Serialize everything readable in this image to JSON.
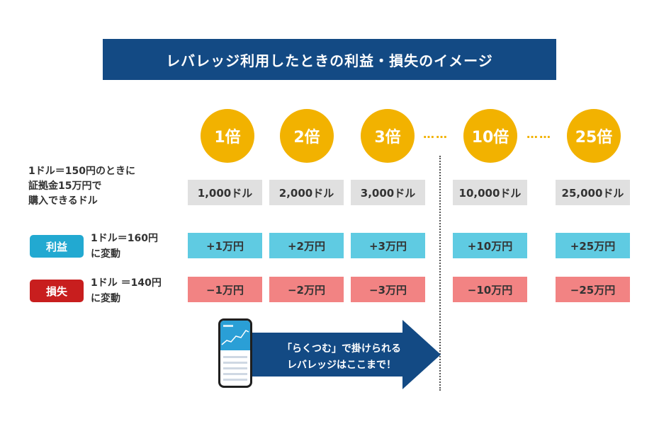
{
  "title": "レバレッジ利用したときの利益・損失のイメージ",
  "leverages": [
    "1倍",
    "2倍",
    "3倍",
    "10倍",
    "25倍"
  ],
  "dots": "……",
  "base_label": [
    "1ドル＝150円のときに",
    "証拠金15万円で",
    "購入できるドル"
  ],
  "base_values": [
    "1,000ドル",
    "2,000ドル",
    "3,000ドル",
    "10,000ドル",
    "25,000ドル"
  ],
  "profit": {
    "badge": "利益",
    "label": [
      "1ドル＝160円",
      "に変動"
    ],
    "values": [
      "+1万円",
      "+2万円",
      "+3万円",
      "+10万円",
      "+25万円"
    ]
  },
  "loss": {
    "badge": "損失",
    "label": [
      "1ドル ＝140円",
      "に変動"
    ],
    "values": [
      "−1万円",
      "−2万円",
      "−3万円",
      "−10万円",
      "−25万円"
    ]
  },
  "arrow_text": [
    "「らくつむ」で掛けられる",
    "レバレッジはここまで！"
  ],
  "colors": {
    "title_bg": "#134a84",
    "circle": "#f2b200",
    "base": "#e0e0e0",
    "profit": "#5fcbe2",
    "profit_badge": "#22a9d1",
    "loss": "#f28383",
    "loss_badge": "#c81e1e",
    "arrow": "#134a84"
  }
}
